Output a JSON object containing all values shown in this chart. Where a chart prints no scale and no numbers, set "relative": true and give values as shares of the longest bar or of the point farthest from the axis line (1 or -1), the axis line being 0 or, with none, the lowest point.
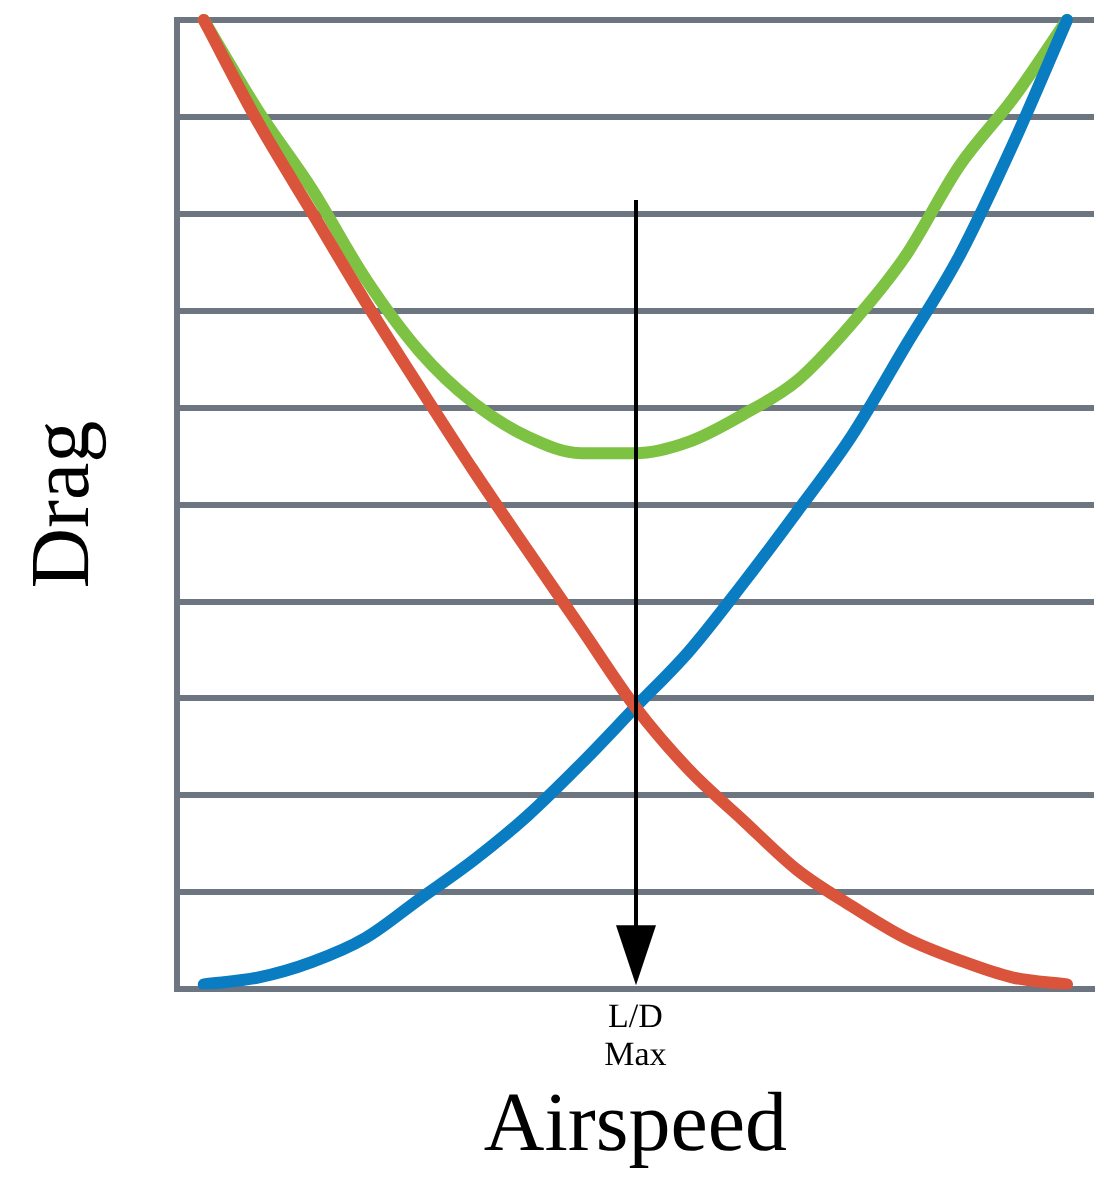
{
  "chart_data": {
    "type": "line",
    "relative": true,
    "xlabel": "Airspeed",
    "ylabel": "Drag",
    "categories": [
      null,
      null,
      null,
      null,
      null,
      null,
      null,
      null,
      null,
      null,
      null,
      null,
      null,
      null,
      null,
      null,
      null
    ],
    "series": [
      {
        "color": "#d9543b",
        "values": [
          1,
          0.895,
          0.802,
          0.709,
          0.621,
          0.535,
          0.453,
          0.372,
          0.291,
          0.226,
          0.174,
          0.123,
          0.086,
          0.053,
          0.03,
          0.012,
          0.005
        ]
      },
      {
        "color": "#0a7dc2",
        "values": [
          0.005,
          0.012,
          0.028,
          0.053,
          0.093,
          0.133,
          0.179,
          0.233,
          0.291,
          0.349,
          0.419,
          0.493,
          0.57,
          0.663,
          0.756,
          0.872,
          1
        ]
      },
      {
        "color": "#7dc242",
        "values": [
          1,
          0.907,
          0.826,
          0.733,
          0.658,
          0.605,
          0.57,
          0.553,
          0.553,
          0.565,
          0.593,
          0.628,
          0.686,
          0.756,
          0.849,
          0.919,
          1
        ]
      }
    ],
    "annotations": [
      "L/D Max"
    ],
    "grid": "y",
    "legend": false,
    "marker": "none",
    "line_style": "solid"
  }
}
